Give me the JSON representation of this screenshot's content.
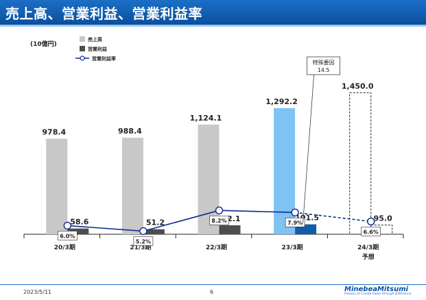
{
  "slide": {
    "title": "売上高、営業利益、営業利益率",
    "date": "2023/5/11",
    "page": "6"
  },
  "logo": {
    "name": "MinebeaMitsumi",
    "tagline": "Passion to Create Value through Difference"
  },
  "colors": {
    "header": "#1c6fc6",
    "sales": "#c8c8c8",
    "profit": "#4d4d4d",
    "sales_fy23": "#7fc2f4",
    "profit_fy23": "#0f5ea8",
    "margin_line": "#0a2a8f"
  },
  "chart_data": {
    "type": "bar",
    "unit": "(10億円)",
    "categories": [
      "20/3期",
      "21/3期",
      "22/3期",
      "23/3期",
      "24/3期"
    ],
    "category_note": [
      "",
      "",
      "",
      "",
      "予想"
    ],
    "series": [
      {
        "name": "売上高",
        "type": "bar",
        "values": [
          978.4,
          988.4,
          1124.1,
          1292.2,
          1450.0
        ],
        "labels": [
          "978.4",
          "988.4",
          "1,124.1",
          "1,292.2",
          "1,450.0"
        ]
      },
      {
        "name": "営業利益",
        "type": "bar",
        "values": [
          58.6,
          51.2,
          92.1,
          101.5,
          95.0
        ],
        "labels": [
          "58.6",
          "51.2",
          "92.1",
          "101.5",
          "95.0"
        ]
      },
      {
        "name": "営業利益率",
        "type": "line",
        "values": [
          6.0,
          5.2,
          8.2,
          7.9,
          6.6
        ],
        "labels": [
          "6.0%",
          "5.2%",
          "8.2%",
          "7.9%",
          "6.6%"
        ]
      }
    ],
    "forecast_category_index": 4,
    "annotation": {
      "category_index": 3,
      "text": "特殊要因",
      "value": "14.5"
    },
    "legend_position": "top-left"
  }
}
